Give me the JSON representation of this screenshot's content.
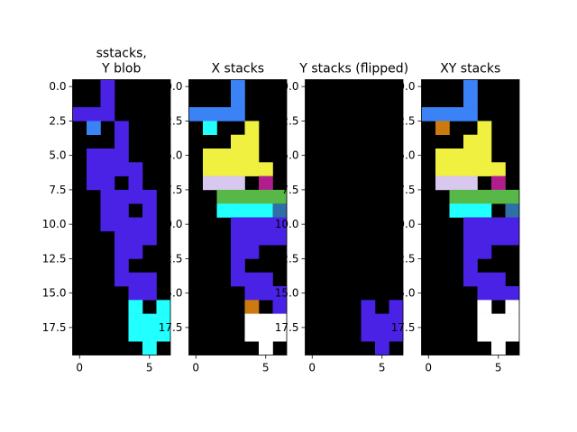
{
  "chart_data": [
    {
      "type": "heatmap",
      "title_lines": [
        "sstacks,",
        "Y blob"
      ],
      "x_ticks": [
        "0",
        "5"
      ],
      "y_ticks": [
        "0.0",
        "2.5",
        "5.0",
        "7.5",
        "10.0",
        "12.5",
        "15.0",
        "17.5"
      ],
      "grid": false,
      "palette": [
        "#000000",
        "#4a22e6",
        "#3b82f6",
        "#58b847",
        "#22ffff"
      ],
      "cells": [
        "0010000",
        "0010000",
        "1110000",
        "0201000",
        "0001000",
        "0111000",
        "0111100",
        "0110100",
        "0011110",
        "0011010",
        "0011110",
        "0001110",
        "0001100",
        "0001000",
        "0001110",
        "0000110",
        "0000404",
        "0000444",
        "0000444",
        "0000040"
      ]
    },
    {
      "type": "heatmap",
      "title_lines": [
        "X stacks"
      ],
      "x_ticks": [
        "0",
        "5"
      ],
      "y_ticks": [
        "0.0",
        "2.5",
        "5.0",
        "7.5",
        "10.0",
        "12.5",
        "15.0",
        "17.5"
      ],
      "grid": false,
      "palette": [
        "#000000",
        "#4a22e6",
        "#3b82f6",
        "#58b847",
        "#22ffff",
        "#f0f040",
        "#b01e8e",
        "#d8c8f0",
        "#2e6fa8",
        "#cc7a10",
        "#ffffff"
      ],
      "cells": [
        "0002000",
        "0002000",
        "2222000",
        "0400500",
        "0005500",
        "0555500",
        "0555550",
        "0777060",
        "0033333",
        "0044448",
        "0001111",
        "0001111",
        "0001100",
        "0001000",
        "0001110",
        "0000111",
        "0000901",
        "0000AAA",
        "0000AAA",
        "00000A0"
      ]
    },
    {
      "type": "heatmap",
      "title_lines": [
        "Y stacks (flipped)"
      ],
      "x_ticks": [
        "0",
        "5"
      ],
      "y_ticks": [
        "0.0",
        "2.5",
        "5.0",
        "7.5",
        "10.0",
        "12.5",
        "15.0",
        "17.5"
      ],
      "grid": false,
      "palette": [
        "#000000",
        "#4a22e6"
      ],
      "cells": [
        "0000000",
        "0000000",
        "0000000",
        "0000000",
        "0000000",
        "0000000",
        "0000000",
        "0000000",
        "0000000",
        "0000000",
        "0000000",
        "0000000",
        "0000000",
        "0000000",
        "0000000",
        "0000000",
        "0000101",
        "0000111",
        "0000111",
        "0000010"
      ]
    },
    {
      "type": "heatmap",
      "title_lines": [
        "XY stacks"
      ],
      "x_ticks": [
        "0",
        "5"
      ],
      "y_ticks": [
        "0.0",
        "2.5",
        "5.0",
        "7.5",
        "10.0",
        "12.5",
        "15.0",
        "17.5"
      ],
      "grid": false,
      "palette": [
        "#000000",
        "#4a22e6",
        "#3b82f6",
        "#58b847",
        "#22ffff",
        "#f0f040",
        "#b01e8e",
        "#d8c8f0",
        "#2e6fa8",
        "#cc7a10",
        "#ffffff"
      ],
      "cells": [
        "0002000",
        "0002000",
        "2222000",
        "0900500",
        "0005500",
        "0555500",
        "0555550",
        "0777060",
        "0033333",
        "0044408",
        "0001111",
        "0001111",
        "0001100",
        "0001000",
        "0001110",
        "0000111",
        "0000A0A",
        "0000AAA",
        "0000AAA",
        "00000A0"
      ]
    }
  ]
}
